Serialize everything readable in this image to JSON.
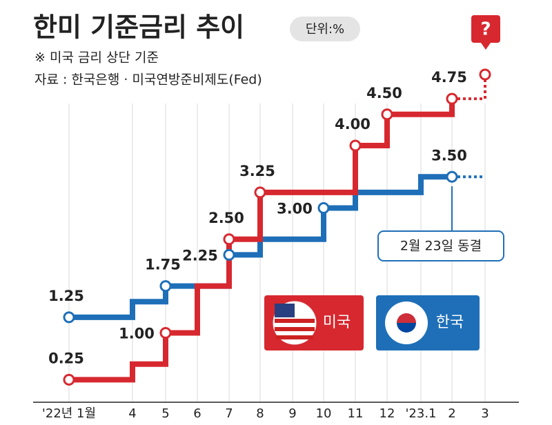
{
  "chart_data": {
    "type": "step",
    "title": "한미 기준금리 추이",
    "unit": "단위:%",
    "notes": [
      "※ 미국 금리 상단 기준",
      "자료 : 한국은행 · 미국연방준비제도(Fed)"
    ],
    "annotation": "2월 23일 동결",
    "question": "?",
    "categories": [
      "'22년 1월",
      "4",
      "5",
      "6",
      "7",
      "8",
      "9",
      "10",
      "11",
      "12",
      "'23.1",
      "2",
      "3"
    ],
    "ylim": [
      0,
      6
    ],
    "series": [
      {
        "name": "미국",
        "color": "#d7282f",
        "values": [
          0.25,
          0.5,
          1.0,
          1.75,
          2.5,
          3.25,
          3.25,
          3.25,
          4.0,
          4.5,
          4.5,
          4.75,
          null
        ],
        "value_labels": [
          "0.25",
          null,
          "1.00",
          null,
          "2.50",
          "3.25",
          null,
          null,
          "4.00",
          "4.50",
          null,
          "4.75",
          null
        ]
      },
      {
        "name": "한국",
        "color": "#1e6fb8",
        "values": [
          1.25,
          1.5,
          1.75,
          1.75,
          2.25,
          2.5,
          2.5,
          3.0,
          3.25,
          3.25,
          3.5,
          3.5,
          null
        ],
        "value_labels": [
          "1.25",
          null,
          "1.75",
          null,
          "2.25",
          null,
          null,
          "3.00",
          null,
          null,
          null,
          "3.50",
          null
        ]
      }
    ]
  }
}
